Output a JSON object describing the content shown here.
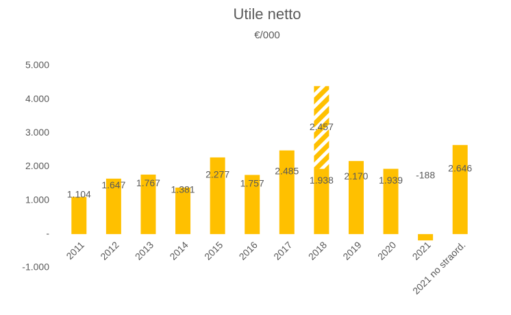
{
  "chart_data": {
    "type": "bar",
    "title": "Utile netto",
    "subtitle": "€/000",
    "categories": [
      "2011",
      "2012",
      "2013",
      "2014",
      "2015",
      "2016",
      "2017",
      "2018",
      "2019",
      "2020",
      "2021",
      "2021 no straord."
    ],
    "series": [
      {
        "color": "#ffc000",
        "pattern": "solid",
        "values": [
          1104,
          1647,
          1767,
          1381,
          2277,
          1757,
          2485,
          1938,
          2170,
          1939,
          -188,
          2646
        ],
        "value_labels": [
          "1.104",
          "1.647",
          "1.767",
          "1.381",
          "2.277",
          "1.757",
          "2.485",
          "1.938",
          "2.170",
          "1.939",
          "-188",
          "2.646"
        ]
      },
      {
        "color": "#ffc000",
        "pattern": "hatched",
        "values": [
          null,
          null,
          null,
          null,
          null,
          null,
          null,
          2457,
          null,
          null,
          null,
          null
        ],
        "value_labels": [
          null,
          null,
          null,
          null,
          null,
          null,
          null,
          "2.457",
          null,
          null,
          null,
          null
        ]
      }
    ],
    "stacked": true,
    "ylim": [
      -1000,
      5000
    ],
    "yticks": [
      {
        "value": -1000,
        "label": "-1.000"
      },
      {
        "value": 0,
        "label": "-"
      },
      {
        "value": 1000,
        "label": "1.000"
      },
      {
        "value": 2000,
        "label": "2.000"
      },
      {
        "value": 3000,
        "label": "3.000"
      },
      {
        "value": 4000,
        "label": "4.000"
      },
      {
        "value": 5000,
        "label": "5.000"
      }
    ],
    "grid": false
  }
}
